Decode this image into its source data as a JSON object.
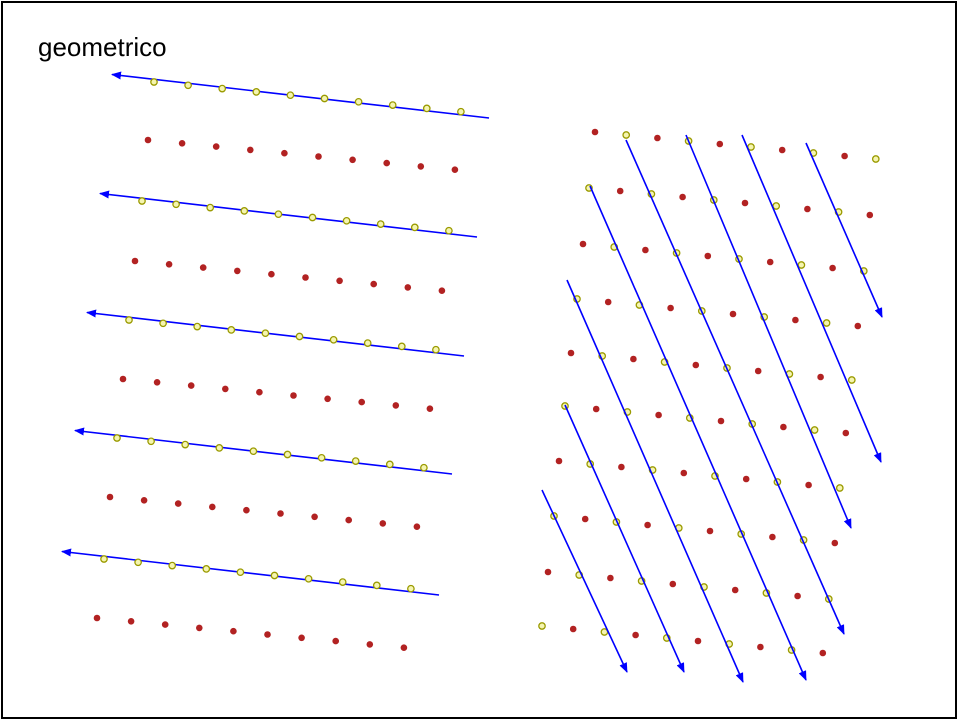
{
  "title": "geometrico",
  "colors": {
    "arrow": "#0000ff",
    "filled_dot": "#b22222",
    "hollow_dot_fill": "#f5f5b0",
    "hollow_dot_stroke": "#9a9a00",
    "frame": "#000000"
  }
}
